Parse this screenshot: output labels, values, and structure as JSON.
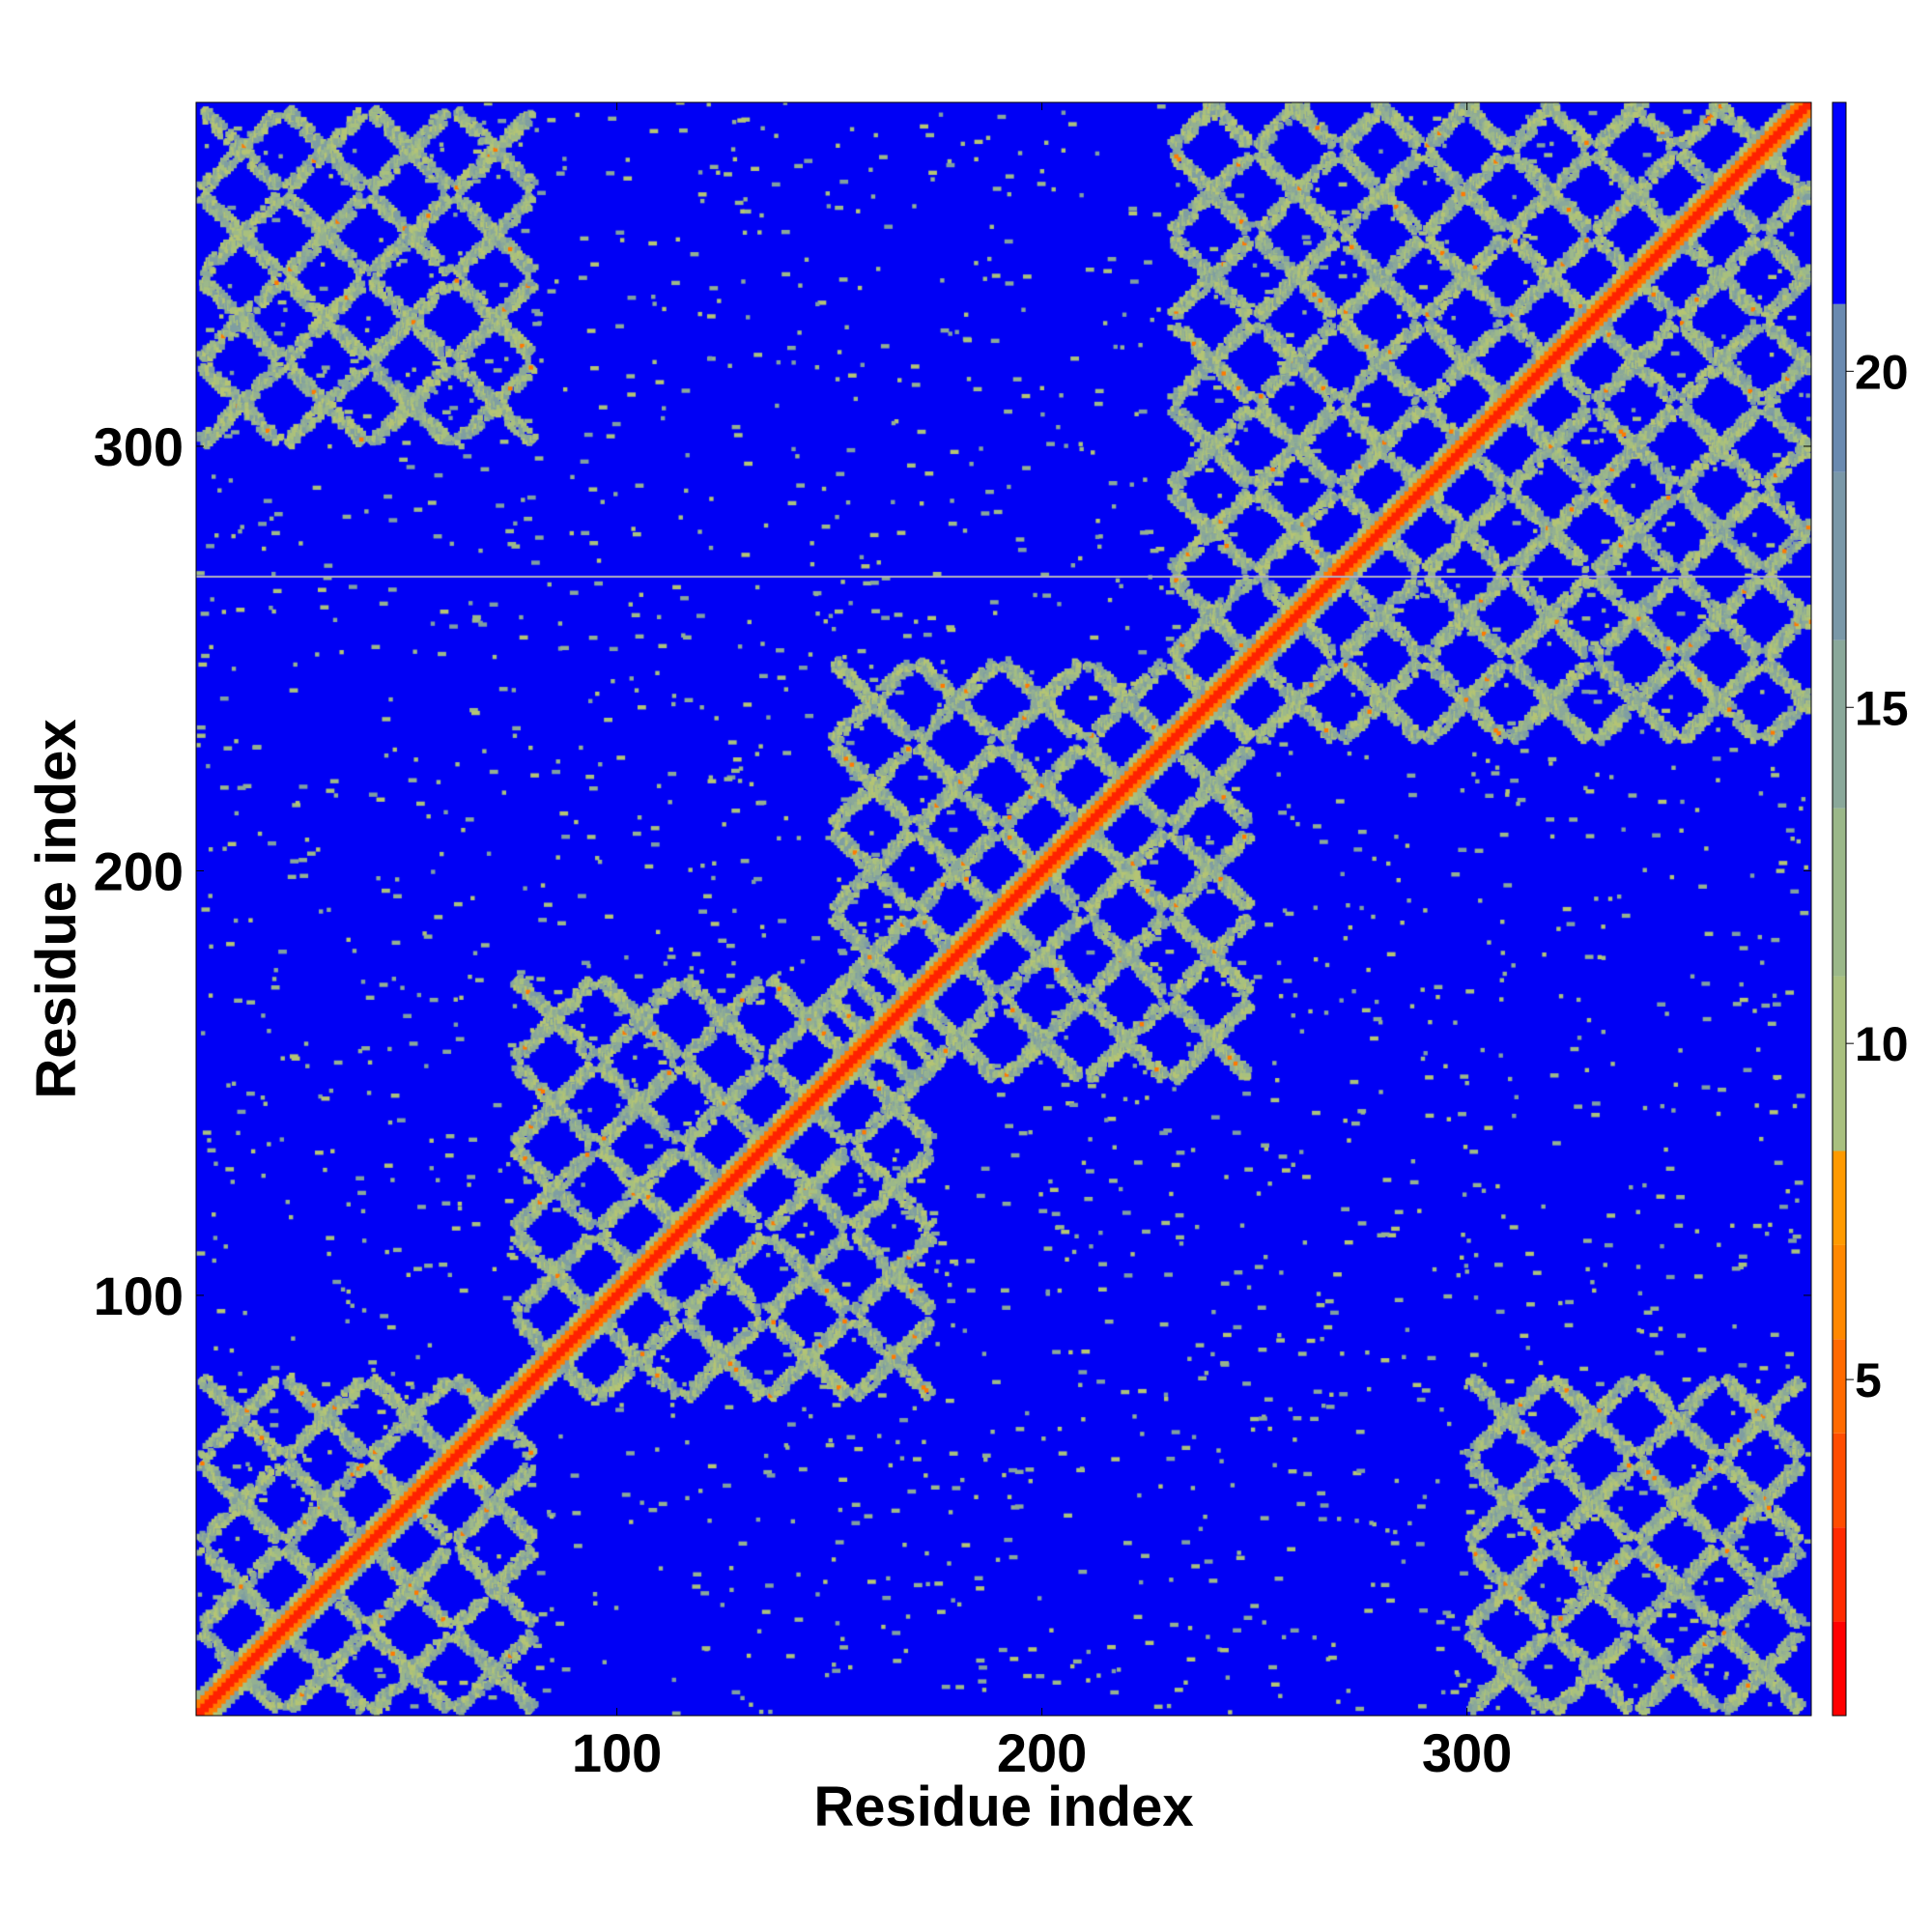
{
  "chart_data": {
    "type": "heatmap",
    "title": "",
    "xlabel": "Residue index",
    "ylabel": "Residue index",
    "xlim": [
      1,
      381
    ],
    "ylim": [
      1,
      381
    ],
    "xticks": [
      100,
      200,
      300
    ],
    "yticks": [
      100,
      200,
      300
    ],
    "colorbar": {
      "range": [
        0,
        24
      ],
      "ticks": [
        5,
        10,
        15,
        20
      ],
      "levels": [
        {
          "from": 0.0,
          "to": 1.4,
          "color": "#ff0000"
        },
        {
          "from": 1.4,
          "to": 2.8,
          "color": "#ff2a00"
        },
        {
          "from": 2.8,
          "to": 4.2,
          "color": "#ff4d00"
        },
        {
          "from": 4.2,
          "to": 5.6,
          "color": "#ff6a00"
        },
        {
          "from": 5.6,
          "to": 7.0,
          "color": "#ff8800"
        },
        {
          "from": 7.0,
          "to": 8.4,
          "color": "#ff9a00"
        },
        {
          "from": 8.4,
          "to": 11.0,
          "color": "#a9c07f"
        },
        {
          "from": 11.0,
          "to": 13.5,
          "color": "#9bb889"
        },
        {
          "from": 13.5,
          "to": 16.0,
          "color": "#8aa89a"
        },
        {
          "from": 16.0,
          "to": 18.5,
          "color": "#7a98a8"
        },
        {
          "from": 18.5,
          "to": 21.0,
          "color": "#6a8ab0"
        },
        {
          "from": 21.0,
          "to": 24.0,
          "color": "#0000ff"
        }
      ]
    },
    "background_color": "#0000f5",
    "diagonal_color": "#ff2200",
    "contact_color": "#9cb88a",
    "close_contact_color": "#ff7a00",
    "description_values": {
      "matrix_size": 381,
      "contact_blocks": [
        {
          "x": [
            1,
            75
          ],
          "y": [
            1,
            75
          ]
        },
        {
          "x": [
            75,
            175
          ],
          "y": [
            75,
            175
          ]
        },
        {
          "x": [
            150,
            260
          ],
          "y": [
            150,
            260
          ]
        },
        {
          "x": [
            230,
            381
          ],
          "y": [
            230,
            381
          ]
        },
        {
          "x": [
            1,
            75
          ],
          "y": [
            300,
            381
          ]
        },
        {
          "x": [
            300,
            381
          ],
          "y": [
            1,
            75
          ]
        }
      ]
    }
  }
}
